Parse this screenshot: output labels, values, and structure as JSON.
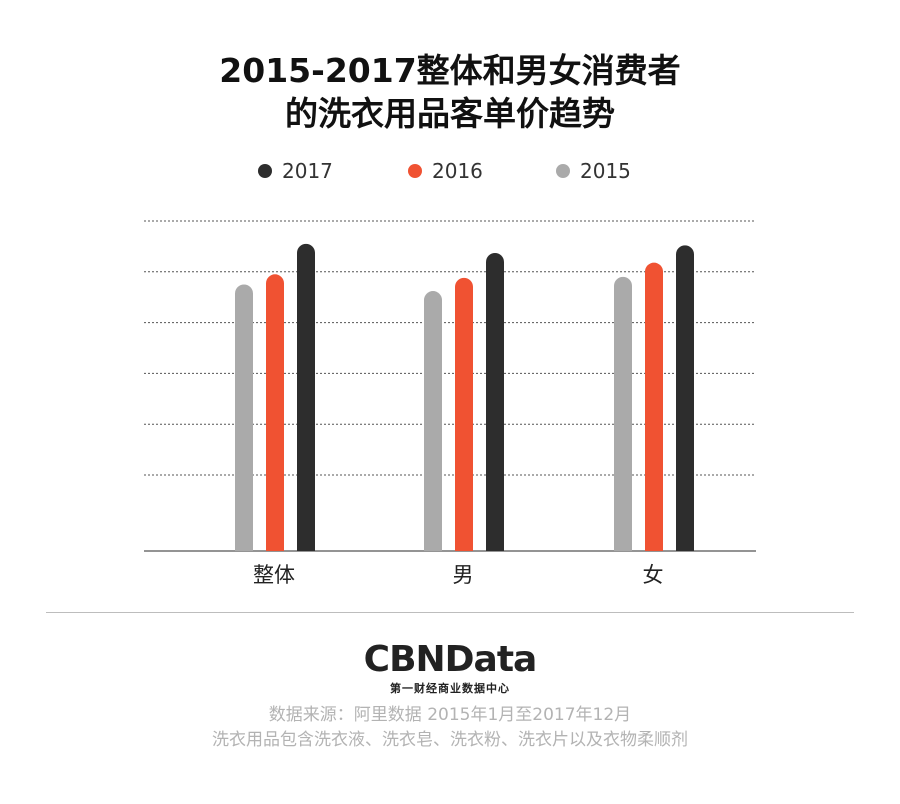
{
  "title": {
    "line1": "2015-2017整体和男女消费者",
    "line2": "的洗衣用品客单价趋势"
  },
  "legend": [
    {
      "label": "2017",
      "color": "#2d2d2d"
    },
    {
      "label": "2016",
      "color": "#f05232"
    },
    {
      "label": "2015",
      "color": "#aaaaaa"
    }
  ],
  "chart_data": {
    "type": "bar",
    "categories": [
      "整体",
      "男",
      "女"
    ],
    "series": [
      {
        "name": "2015",
        "color": "#aaaaaa",
        "values": [
          52.5,
          51.2,
          54.0
        ]
      },
      {
        "name": "2016",
        "color": "#f05232",
        "values": [
          54.5,
          53.8,
          56.8
        ]
      },
      {
        "name": "2017",
        "color": "#2d2d2d",
        "values": [
          60.5,
          58.7,
          60.2
        ]
      }
    ],
    "ylim": [
      0,
      65
    ],
    "grid": true,
    "legend_position": "top-center",
    "title": "2015-2017整体和男女消费者的洗衣用品客单价趋势"
  },
  "footer": {
    "logo": "CBNData",
    "logo_sub": "第一财经商业数据中心",
    "source_line1": "数据来源：阿里数据  2015年1月至2017年12月",
    "source_line2": "洗衣用品包含洗衣液、洗衣皂、洗衣粉、洗衣片以及衣物柔顺剂"
  }
}
